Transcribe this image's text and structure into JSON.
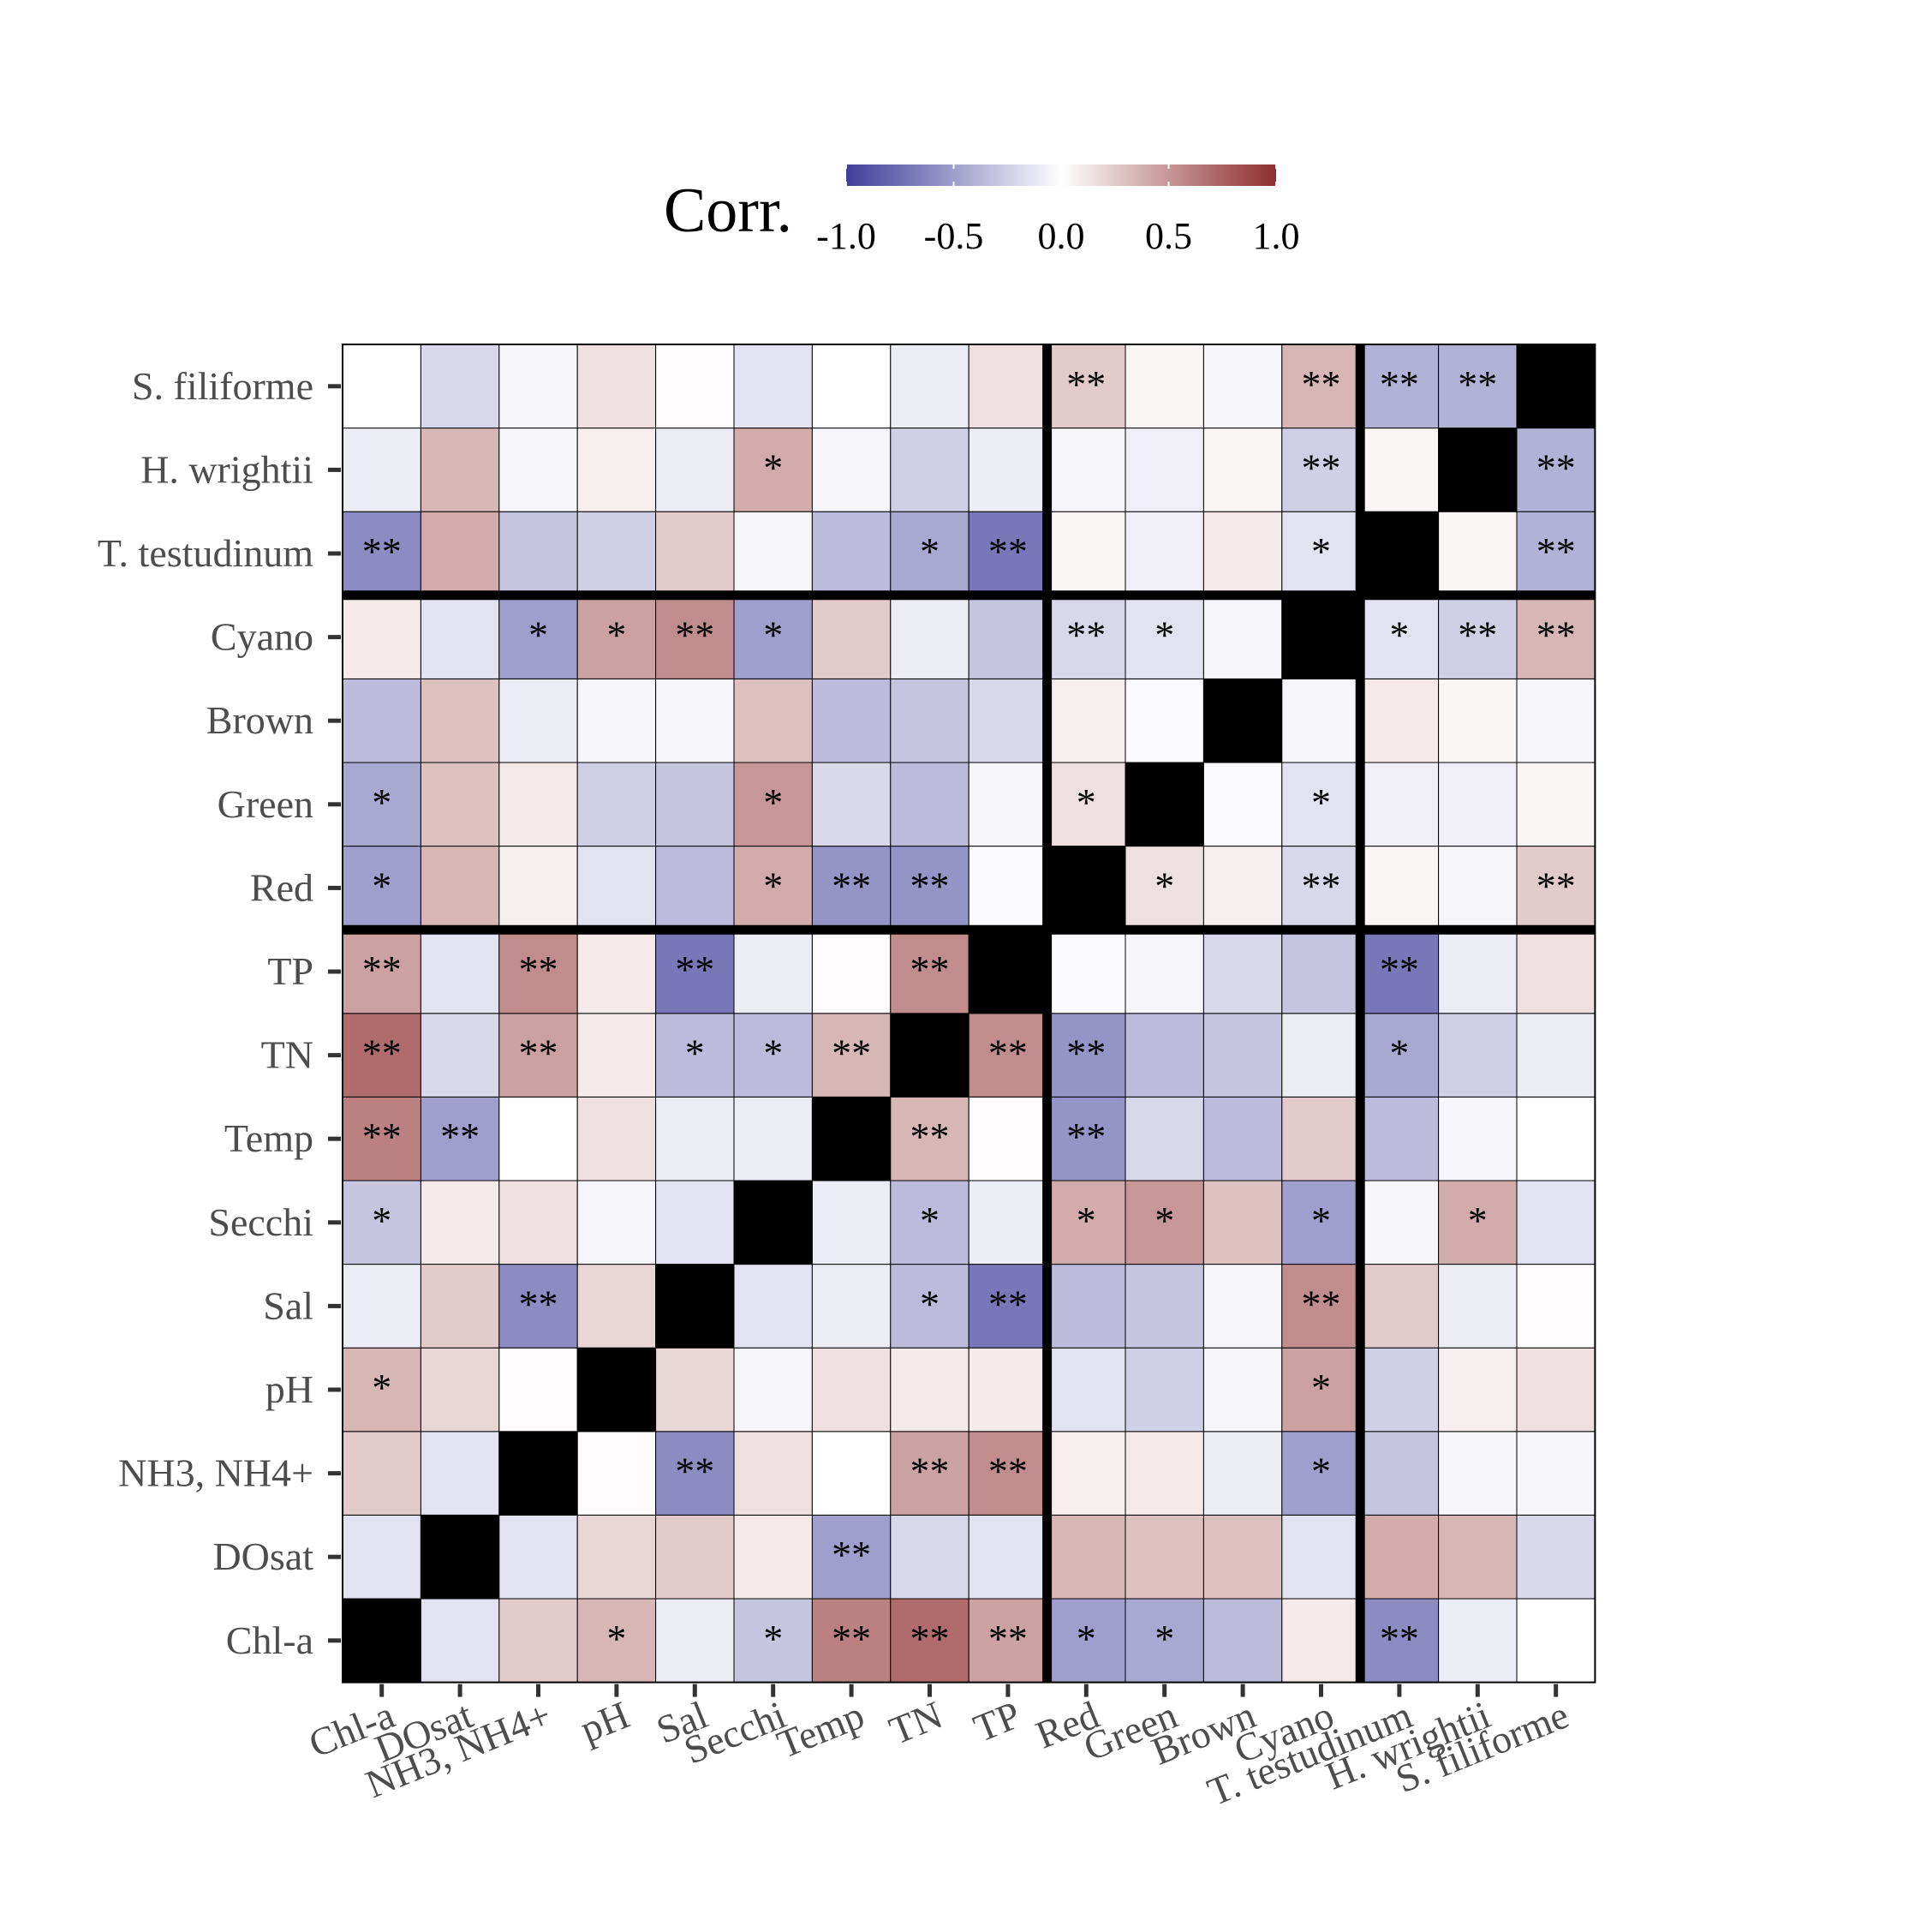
{
  "chart_data": {
    "type": "heatmap",
    "legend": {
      "title": "Corr.",
      "ticks": [
        -1.0,
        -0.5,
        0.0,
        0.5,
        1.0
      ],
      "tick_labels": [
        "-1.0",
        "-0.5",
        "0.0",
        "0.5",
        "1.0"
      ],
      "placement": "top",
      "colors": {
        "low": "#3F3D99",
        "mid": "#FFFFFF",
        "high": "#8E2D2D"
      }
    },
    "diagonal_color": "#000000",
    "variables": [
      "Chl-a",
      "DOsat",
      "NH3, NH4+",
      "pH",
      "Sal",
      "Secchi",
      "Temp",
      "TN",
      "TP",
      "Red",
      "Green",
      "Brown",
      "Cyano",
      "T. testudinum",
      "H. wrightii",
      "S. filiforme"
    ],
    "group_boundaries_after_index": [
      8,
      12
    ],
    "values": [
      [
        1.0,
        -0.15,
        0.25,
        0.35,
        -0.1,
        -0.3,
        0.6,
        0.7,
        0.45,
        -0.5,
        -0.45,
        -0.35,
        0.1,
        -0.6,
        -0.1,
        0.0
      ],
      [
        -0.15,
        1.0,
        -0.15,
        0.2,
        0.25,
        0.1,
        -0.5,
        -0.2,
        -0.15,
        0.35,
        0.3,
        0.3,
        -0.15,
        0.4,
        0.35,
        -0.2
      ],
      [
        0.25,
        -0.15,
        1.0,
        0.02,
        -0.6,
        0.15,
        0.0,
        0.45,
        0.55,
        0.08,
        0.1,
        -0.1,
        -0.5,
        -0.3,
        -0.05,
        -0.05
      ],
      [
        0.35,
        0.2,
        0.02,
        1.0,
        0.2,
        -0.05,
        0.15,
        0.1,
        0.1,
        -0.15,
        -0.25,
        -0.05,
        0.45,
        -0.25,
        0.08,
        0.15
      ],
      [
        -0.1,
        0.25,
        -0.6,
        0.2,
        1.0,
        -0.15,
        -0.1,
        -0.35,
        -0.7,
        -0.35,
        -0.3,
        -0.05,
        0.55,
        0.25,
        -0.1,
        0.02
      ],
      [
        -0.3,
        0.1,
        0.15,
        -0.05,
        -0.15,
        1.0,
        -0.1,
        -0.35,
        -0.1,
        0.4,
        0.5,
        0.3,
        -0.5,
        -0.05,
        0.4,
        -0.15
      ],
      [
        0.6,
        -0.5,
        0.0,
        0.15,
        -0.1,
        -0.1,
        1.0,
        0.35,
        0.02,
        -0.55,
        -0.2,
        -0.35,
        0.25,
        -0.35,
        -0.05,
        0.0
      ],
      [
        0.7,
        -0.2,
        0.45,
        0.1,
        -0.35,
        -0.35,
        0.35,
        1.0,
        0.55,
        -0.55,
        -0.35,
        -0.3,
        -0.1,
        -0.45,
        -0.25,
        -0.1
      ],
      [
        0.45,
        -0.15,
        0.55,
        0.1,
        -0.7,
        -0.1,
        0.02,
        0.55,
        1.0,
        -0.02,
        -0.05,
        -0.2,
        -0.3,
        -0.7,
        -0.1,
        0.15
      ],
      [
        -0.5,
        0.35,
        0.08,
        -0.15,
        -0.35,
        0.4,
        -0.55,
        -0.55,
        -0.02,
        1.0,
        0.15,
        0.08,
        -0.2,
        0.05,
        -0.05,
        0.25
      ],
      [
        -0.45,
        0.3,
        0.1,
        -0.25,
        -0.3,
        0.5,
        -0.2,
        -0.35,
        -0.05,
        0.15,
        1.0,
        -0.02,
        -0.15,
        -0.08,
        -0.08,
        0.05
      ],
      [
        -0.35,
        0.3,
        -0.1,
        -0.05,
        -0.05,
        0.3,
        -0.35,
        -0.3,
        -0.2,
        0.08,
        -0.02,
        1.0,
        -0.05,
        0.1,
        0.05,
        -0.05
      ],
      [
        0.1,
        -0.15,
        -0.5,
        0.45,
        0.55,
        -0.5,
        0.25,
        -0.1,
        -0.3,
        -0.2,
        -0.15,
        -0.05,
        1.0,
        -0.15,
        -0.25,
        0.35
      ],
      [
        -0.6,
        0.4,
        -0.3,
        -0.25,
        0.25,
        -0.05,
        -0.35,
        -0.45,
        -0.7,
        0.05,
        -0.08,
        0.1,
        -0.15,
        1.0,
        0.05,
        -0.4
      ],
      [
        -0.1,
        0.35,
        -0.05,
        0.08,
        -0.1,
        0.4,
        -0.05,
        -0.25,
        -0.1,
        -0.05,
        -0.08,
        0.05,
        -0.25,
        0.05,
        1.0,
        -0.4
      ],
      [
        0.0,
        -0.2,
        -0.05,
        0.15,
        0.02,
        -0.15,
        0.0,
        -0.1,
        0.15,
        0.25,
        0.05,
        -0.05,
        0.35,
        -0.4,
        -0.4,
        1.0
      ]
    ],
    "significance": [
      [
        "",
        "",
        "",
        "*",
        "",
        "*",
        "**",
        "**",
        "**",
        "*",
        "*",
        "",
        "",
        "**",
        "",
        ""
      ],
      [
        "",
        "",
        "",
        "",
        "",
        "",
        "**",
        "",
        "",
        "",
        "",
        "",
        "",
        "",
        "",
        ""
      ],
      [
        "",
        "",
        "",
        "",
        "**",
        "",
        "",
        "**",
        "**",
        "",
        "",
        "",
        "*",
        "",
        "",
        ""
      ],
      [
        "*",
        "",
        "",
        "",
        "",
        "",
        "",
        "",
        "",
        "",
        "",
        "",
        "*",
        "",
        "",
        ""
      ],
      [
        "",
        "",
        "**",
        "",
        "",
        "",
        "",
        "*",
        "**",
        "",
        "",
        "",
        "**",
        "",
        "",
        ""
      ],
      [
        "*",
        "",
        "",
        "",
        "",
        "",
        "",
        "*",
        "",
        "*",
        "*",
        "",
        "*",
        "",
        "*",
        ""
      ],
      [
        "**",
        "**",
        "",
        "",
        "",
        "",
        "",
        "**",
        "",
        "**",
        "",
        "",
        "",
        "",
        "",
        ""
      ],
      [
        "**",
        "",
        "**",
        "",
        "*",
        "*",
        "**",
        "",
        "**",
        "**",
        "",
        "",
        "",
        "*",
        "",
        ""
      ],
      [
        "**",
        "",
        "**",
        "",
        "**",
        "",
        "",
        "**",
        "",
        "",
        "",
        "",
        "",
        "**",
        "",
        ""
      ],
      [
        "*",
        "",
        "",
        "",
        "",
        "*",
        "**",
        "**",
        "",
        "",
        "*",
        "",
        "**",
        "",
        "",
        "**"
      ],
      [
        "*",
        "",
        "",
        "",
        "",
        "*",
        "",
        "",
        "",
        "*",
        "",
        "",
        "*",
        "",
        "",
        ""
      ],
      [
        "",
        "",
        "",
        "",
        "",
        "",
        "",
        "",
        "",
        "",
        "",
        "",
        "",
        "",
        "",
        ""
      ],
      [
        "",
        "",
        "*",
        "*",
        "**",
        "*",
        "",
        "",
        "",
        "**",
        "*",
        "",
        "",
        "*",
        "**",
        "**"
      ],
      [
        "**",
        "",
        "",
        "",
        "",
        "",
        "",
        "*",
        "**",
        "",
        "",
        "",
        "*",
        "",
        "",
        "**"
      ],
      [
        "",
        "",
        "",
        "",
        "",
        "*",
        "",
        "",
        "",
        "",
        "",
        "",
        "**",
        "",
        "",
        "**"
      ],
      [
        "",
        "",
        "",
        "",
        "",
        "",
        "",
        "",
        "",
        "**",
        "",
        "",
        "**",
        "**",
        "**",
        ""
      ]
    ]
  }
}
